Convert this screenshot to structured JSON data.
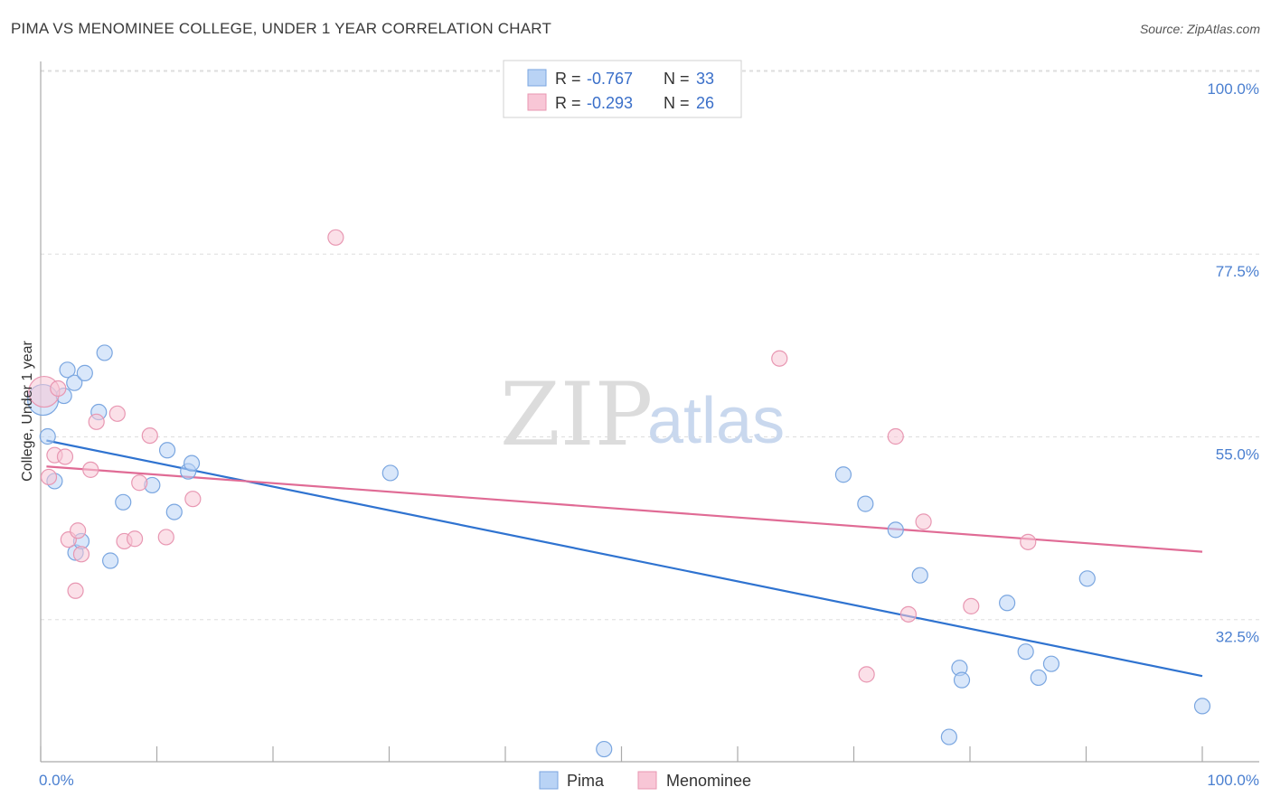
{
  "title": "PIMA VS MENOMINEE COLLEGE, UNDER 1 YEAR CORRELATION CHART",
  "source": "Source: ZipAtlas.com",
  "watermark": {
    "zip": "ZIP",
    "atlas": "atlas"
  },
  "legend": {
    "pima": {
      "r_label": "R = ",
      "r_value": "-0.767",
      "n_label": "N = ",
      "n_value": "33"
    },
    "menominee": {
      "r_label": "R = ",
      "r_value": "-0.293",
      "n_label": "N = ",
      "n_value": "26"
    }
  },
  "bottom_legend": [
    "Pima",
    "Menominee"
  ],
  "colors": {
    "pima_fill": "#b9d3f5",
    "pima_stroke": "#7aa6e0",
    "pima_line": "#2f73d0",
    "menominee_fill": "#f8c6d6",
    "menominee_stroke": "#e897b2",
    "menominee_line": "#e06b95",
    "grid": "#dddddd",
    "axis_text": "#4a7fd0"
  },
  "chart_data": {
    "type": "scatter",
    "ylabel": "College, Under 1 year",
    "xlim": [
      0,
      100
    ],
    "ylim": [
      15,
      100
    ],
    "y_ticks": [
      100.0,
      77.5,
      55.0,
      32.5
    ],
    "y_tick_labels": [
      "100.0%",
      "77.5%",
      "55.0%",
      "32.5%"
    ],
    "x_tick_labels": [
      "0.0%",
      "100.0%"
    ],
    "series": [
      {
        "name": "Pima",
        "points": [
          [
            0.2,
            62.0
          ],
          [
            0.6,
            57.5
          ],
          [
            1.2,
            52.0
          ],
          [
            2.0,
            62.5
          ],
          [
            2.3,
            65.7
          ],
          [
            2.9,
            64.1
          ],
          [
            3.0,
            43.2
          ],
          [
            3.5,
            44.6
          ],
          [
            3.8,
            65.3
          ],
          [
            5.0,
            60.5
          ],
          [
            5.5,
            67.8
          ],
          [
            6.0,
            42.2
          ],
          [
            7.1,
            49.4
          ],
          [
            9.6,
            51.5
          ],
          [
            10.9,
            55.8
          ],
          [
            11.5,
            48.2
          ],
          [
            12.7,
            53.2
          ],
          [
            13.0,
            54.2
          ],
          [
            30.1,
            53.0
          ],
          [
            48.5,
            19.0
          ],
          [
            69.1,
            52.8
          ],
          [
            71.0,
            49.2
          ],
          [
            73.6,
            46.0
          ],
          [
            75.7,
            40.4
          ],
          [
            78.2,
            20.5
          ],
          [
            79.1,
            29.0
          ],
          [
            79.3,
            27.5
          ],
          [
            83.2,
            37.0
          ],
          [
            84.8,
            31.0
          ],
          [
            85.9,
            27.8
          ],
          [
            87.0,
            29.5
          ],
          [
            90.1,
            40.0
          ],
          [
            100.0,
            24.3
          ]
        ],
        "trend": [
          [
            0.5,
            57.0
          ],
          [
            100.0,
            28.0
          ]
        ]
      },
      {
        "name": "Menominee",
        "points": [
          [
            0.3,
            63.0
          ],
          [
            0.7,
            52.5
          ],
          [
            1.2,
            55.2
          ],
          [
            1.5,
            63.4
          ],
          [
            2.1,
            55.0
          ],
          [
            2.4,
            44.8
          ],
          [
            3.0,
            38.5
          ],
          [
            3.2,
            45.9
          ],
          [
            3.5,
            43.0
          ],
          [
            4.3,
            53.4
          ],
          [
            4.8,
            59.3
          ],
          [
            6.6,
            60.3
          ],
          [
            7.2,
            44.6
          ],
          [
            8.1,
            44.9
          ],
          [
            8.5,
            51.8
          ],
          [
            9.4,
            57.6
          ],
          [
            10.8,
            45.1
          ],
          [
            13.1,
            49.8
          ],
          [
            25.4,
            82.0
          ],
          [
            63.6,
            67.1
          ],
          [
            71.1,
            28.2
          ],
          [
            73.6,
            57.5
          ],
          [
            74.7,
            35.6
          ],
          [
            76.0,
            47.0
          ],
          [
            80.1,
            36.6
          ],
          [
            85.0,
            44.5
          ]
        ],
        "trend": [
          [
            0.5,
            53.8
          ],
          [
            100.0,
            43.3
          ]
        ]
      }
    ]
  }
}
